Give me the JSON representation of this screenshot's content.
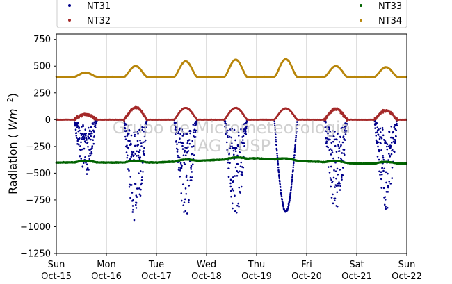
{
  "chart_data": {
    "type": "scatter",
    "ylabel": "Radiation (Wm^-2)",
    "ylim": [
      -1250,
      800
    ],
    "yticks": [
      750,
      500,
      250,
      0,
      -250,
      -500,
      -750,
      -1000,
      -1250
    ],
    "ytick_labels": [
      "750",
      "500",
      "250",
      "0",
      "−250",
      "−500",
      "−750",
      "−1000",
      "−1250"
    ],
    "xlim": [
      "2023-10-15",
      "2023-10-22"
    ],
    "xticks": [
      {
        "day": "Sun",
        "date": "Oct-15"
      },
      {
        "day": "Mon",
        "date": "Oct-16"
      },
      {
        "day": "Tue",
        "date": "Oct-17"
      },
      {
        "day": "Wed",
        "date": "Oct-18"
      },
      {
        "day": "Thu",
        "date": "Oct-19"
      },
      {
        "day": "Fri",
        "date": "Oct-20"
      },
      {
        "day": "Sat",
        "date": "Oct-21"
      },
      {
        "day": "Sun",
        "date": "Oct-22"
      }
    ],
    "grid": "vertical",
    "legend_position": "top",
    "watermark": [
      "Grupo de Micrometeorologia",
      "IAG / USP"
    ],
    "series": [
      {
        "name": "NT31",
        "color": "#00008b",
        "kind": "negative_daytime",
        "peaks": [
          -520,
          -1000,
          -900,
          -950,
          -860,
          -880,
          -850
        ]
      },
      {
        "name": "NT32",
        "color": "#a52a2a",
        "kind": "positive_daytime",
        "peaks": [
          50,
          115,
          110,
          110,
          105,
          100,
          85
        ]
      },
      {
        "name": "NT33",
        "color": "#006400",
        "kind": "baseline",
        "daily": [
          -400,
          -400,
          -400,
          -380,
          -360,
          -390,
          -410,
          -410
        ]
      },
      {
        "name": "NT34",
        "color": "#b8860b",
        "kind": "baseline_bump",
        "base": 400,
        "peaks": [
          440,
          500,
          545,
          560,
          565,
          500,
          490
        ]
      }
    ]
  }
}
